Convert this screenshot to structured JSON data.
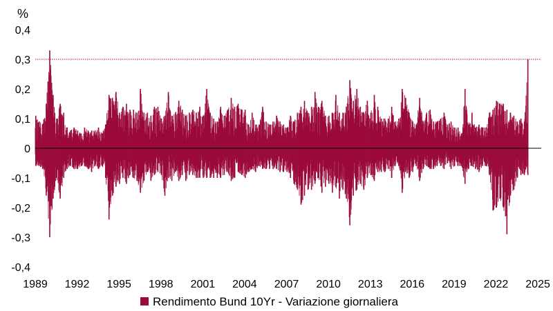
{
  "chart_data": {
    "type": "bar",
    "title": "",
    "xlabel": "",
    "ylabel": "%",
    "ylim": [
      -0.4,
      0.4
    ],
    "xlim": [
      "1989-01-01",
      "2025-03-31"
    ],
    "yticks": [
      "0,4",
      "0,3",
      "0,2",
      "0,1",
      "0",
      "-0,1",
      "-0,2",
      "-0,3",
      "-0,4"
    ],
    "ytick_values": [
      0.4,
      0.3,
      0.2,
      0.1,
      0,
      -0.1,
      -0.2,
      -0.3,
      -0.4
    ],
    "xticks": [
      "1989",
      "1992",
      "1995",
      "1998",
      "2001",
      "2004",
      "2007",
      "2010",
      "2013",
      "2016",
      "2019",
      "2022",
      "2025"
    ],
    "xtick_values": [
      "1989-01-01",
      "1992-01-01",
      "1995-01-01",
      "1998-01-01",
      "2001-01-01",
      "2004-01-01",
      "2007-01-01",
      "2010-01-01",
      "2013-01-01",
      "2016-01-01",
      "2019-01-01",
      "2022-01-01",
      "2025-01-01"
    ],
    "grid": false,
    "legend_position": "bottom",
    "reference_line": {
      "value": 0.3,
      "style": "dotted",
      "color": "#c0002a"
    },
    "colors": {
      "series": "#9b0a3c",
      "axis": "#000000",
      "ref": "#c0002a"
    },
    "series": [
      {
        "name": "Rendimento Bund 10Yr - Variazione giornaliera",
        "envelope": {
          "x": [
            "1989-01-15",
            "1989-04-15",
            "1989-07-15",
            "1989-10-15",
            "1990-01-15",
            "1990-04-15",
            "1990-07-15",
            "1990-10-15",
            "1991-01-15",
            "1991-04-15",
            "1991-07-15",
            "1991-10-15",
            "1992-01-15",
            "1992-04-15",
            "1992-07-15",
            "1992-10-15",
            "1993-01-15",
            "1993-04-15",
            "1993-07-15",
            "1993-10-15",
            "1994-01-15",
            "1994-04-15",
            "1994-07-15",
            "1994-10-15",
            "1995-01-15",
            "1995-04-15",
            "1995-07-15",
            "1995-10-15",
            "1996-01-15",
            "1996-04-15",
            "1996-07-15",
            "1996-10-15",
            "1997-01-15",
            "1997-04-15",
            "1997-07-15",
            "1997-10-15",
            "1998-01-15",
            "1998-04-15",
            "1998-07-15",
            "1998-10-15",
            "1999-01-15",
            "1999-04-15",
            "1999-07-15",
            "1999-10-15",
            "2000-01-15",
            "2000-04-15",
            "2000-07-15",
            "2000-10-15",
            "2001-01-15",
            "2001-04-15",
            "2001-07-15",
            "2001-10-15",
            "2002-01-15",
            "2002-04-15",
            "2002-07-15",
            "2002-10-15",
            "2003-01-15",
            "2003-04-15",
            "2003-07-15",
            "2003-10-15",
            "2004-01-15",
            "2004-04-15",
            "2004-07-15",
            "2004-10-15",
            "2005-01-15",
            "2005-04-15",
            "2005-07-15",
            "2005-10-15",
            "2006-01-15",
            "2006-04-15",
            "2006-07-15",
            "2006-10-15",
            "2007-01-15",
            "2007-04-15",
            "2007-07-15",
            "2007-10-15",
            "2008-01-15",
            "2008-04-15",
            "2008-07-15",
            "2008-10-15",
            "2009-01-15",
            "2009-04-15",
            "2009-07-15",
            "2009-10-15",
            "2010-01-15",
            "2010-04-15",
            "2010-07-15",
            "2010-10-15",
            "2011-01-15",
            "2011-04-15",
            "2011-07-15",
            "2011-10-15",
            "2012-01-15",
            "2012-04-15",
            "2012-07-15",
            "2012-10-15",
            "2013-01-15",
            "2013-04-15",
            "2013-07-15",
            "2013-10-15",
            "2014-01-15",
            "2014-04-15",
            "2014-07-15",
            "2014-10-15",
            "2015-01-15",
            "2015-04-15",
            "2015-07-15",
            "2015-10-15",
            "2016-01-15",
            "2016-04-15",
            "2016-07-15",
            "2016-10-15",
            "2017-01-15",
            "2017-04-15",
            "2017-07-15",
            "2017-10-15",
            "2018-01-15",
            "2018-04-15",
            "2018-07-15",
            "2018-10-15",
            "2019-01-15",
            "2019-04-15",
            "2019-07-15",
            "2019-10-15",
            "2020-01-15",
            "2020-04-15",
            "2020-07-15",
            "2020-10-15",
            "2021-01-15",
            "2021-04-15",
            "2021-07-15",
            "2021-10-15",
            "2022-01-15",
            "2022-04-15",
            "2022-07-15",
            "2022-10-15",
            "2023-01-15",
            "2023-04-15",
            "2023-07-15",
            "2023-10-15",
            "2024-01-15",
            "2024-04-15",
            "2024-07-15",
            "2024-10-15",
            "2025-01-15",
            "2025-03-05"
          ],
          "max": [
            0.11,
            0.09,
            0.08,
            0.15,
            0.33,
            0.18,
            0.1,
            0.15,
            0.12,
            0.07,
            0.06,
            0.07,
            0.06,
            0.05,
            0.07,
            0.06,
            0.06,
            0.06,
            0.07,
            0.05,
            0.08,
            0.18,
            0.17,
            0.19,
            0.12,
            0.14,
            0.15,
            0.13,
            0.13,
            0.12,
            0.2,
            0.12,
            0.12,
            0.11,
            0.14,
            0.14,
            0.1,
            0.11,
            0.19,
            0.11,
            0.12,
            0.16,
            0.13,
            0.11,
            0.12,
            0.13,
            0.12,
            0.14,
            0.11,
            0.2,
            0.12,
            0.1,
            0.09,
            0.14,
            0.11,
            0.13,
            0.17,
            0.14,
            0.15,
            0.13,
            0.13,
            0.08,
            0.12,
            0.08,
            0.08,
            0.14,
            0.09,
            0.08,
            0.09,
            0.11,
            0.09,
            0.08,
            0.07,
            0.11,
            0.09,
            0.12,
            0.14,
            0.16,
            0.12,
            0.14,
            0.19,
            0.14,
            0.16,
            0.11,
            0.11,
            0.12,
            0.18,
            0.12,
            0.12,
            0.14,
            0.23,
            0.16,
            0.2,
            0.14,
            0.12,
            0.16,
            0.12,
            0.18,
            0.14,
            0.1,
            0.1,
            0.1,
            0.14,
            0.09,
            0.1,
            0.2,
            0.17,
            0.12,
            0.09,
            0.08,
            0.17,
            0.09,
            0.12,
            0.13,
            0.09,
            0.09,
            0.1,
            0.12,
            0.08,
            0.09,
            0.07,
            0.07,
            0.05,
            0.2,
            0.08,
            0.12,
            0.07,
            0.08,
            0.07,
            0.07,
            0.12,
            0.13,
            0.16,
            0.15,
            0.15,
            0.13,
            0.12,
            0.11,
            0.09,
            0.1,
            0.09,
            0.3
          ],
          "min": [
            -0.06,
            -0.06,
            -0.07,
            -0.16,
            -0.3,
            -0.17,
            -0.1,
            -0.17,
            -0.1,
            -0.07,
            -0.06,
            -0.07,
            -0.07,
            -0.06,
            -0.06,
            -0.07,
            -0.08,
            -0.06,
            -0.07,
            -0.06,
            -0.1,
            -0.24,
            -0.16,
            -0.13,
            -0.12,
            -0.1,
            -0.12,
            -0.09,
            -0.1,
            -0.11,
            -0.15,
            -0.11,
            -0.08,
            -0.11,
            -0.09,
            -0.08,
            -0.09,
            -0.16,
            -0.1,
            -0.11,
            -0.08,
            -0.11,
            -0.09,
            -0.11,
            -0.09,
            -0.09,
            -0.1,
            -0.1,
            -0.1,
            -0.1,
            -0.1,
            -0.1,
            -0.1,
            -0.1,
            -0.09,
            -0.08,
            -0.11,
            -0.1,
            -0.08,
            -0.09,
            -0.1,
            -0.08,
            -0.07,
            -0.08,
            -0.06,
            -0.07,
            -0.07,
            -0.07,
            -0.07,
            -0.07,
            -0.08,
            -0.08,
            -0.08,
            -0.1,
            -0.12,
            -0.14,
            -0.19,
            -0.16,
            -0.14,
            -0.14,
            -0.12,
            -0.1,
            -0.15,
            -0.13,
            -0.12,
            -0.15,
            -0.13,
            -0.17,
            -0.14,
            -0.17,
            -0.26,
            -0.16,
            -0.14,
            -0.12,
            -0.14,
            -0.1,
            -0.09,
            -0.11,
            -0.08,
            -0.08,
            -0.08,
            -0.07,
            -0.1,
            -0.06,
            -0.06,
            -0.15,
            -0.08,
            -0.1,
            -0.08,
            -0.06,
            -0.11,
            -0.07,
            -0.06,
            -0.07,
            -0.07,
            -0.06,
            -0.06,
            -0.07,
            -0.05,
            -0.07,
            -0.06,
            -0.06,
            -0.06,
            -0.12,
            -0.07,
            -0.06,
            -0.07,
            -0.08,
            -0.06,
            -0.06,
            -0.09,
            -0.21,
            -0.2,
            -0.17,
            -0.2,
            -0.29,
            -0.16,
            -0.14,
            -0.1,
            -0.09,
            -0.09,
            -0.09
          ]
        }
      }
    ]
  }
}
